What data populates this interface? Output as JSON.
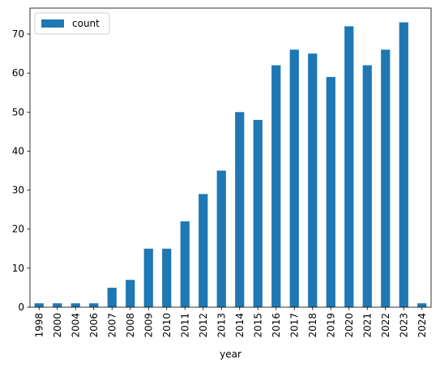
{
  "chart_data": {
    "type": "bar",
    "categories": [
      "1998",
      "2000",
      "2004",
      "2006",
      "2007",
      "2008",
      "2009",
      "2010",
      "2011",
      "2012",
      "2013",
      "2014",
      "2015",
      "2016",
      "2017",
      "2018",
      "2019",
      "2020",
      "2021",
      "2022",
      "2023",
      "2024"
    ],
    "series": [
      {
        "name": "count",
        "values": [
          1,
          1,
          1,
          1,
          5,
          7,
          15,
          15,
          22,
          29,
          35,
          50,
          48,
          62,
          66,
          65,
          59,
          72,
          62,
          66,
          73,
          1
        ]
      }
    ],
    "xlabel": "year",
    "ylabel": "",
    "ylim": [
      0,
      76.65
    ],
    "yticks": [
      0,
      10,
      20,
      30,
      40,
      50,
      60,
      70
    ],
    "grid": false,
    "legend_position": "top-left",
    "bar_color": "#1f77b4"
  }
}
